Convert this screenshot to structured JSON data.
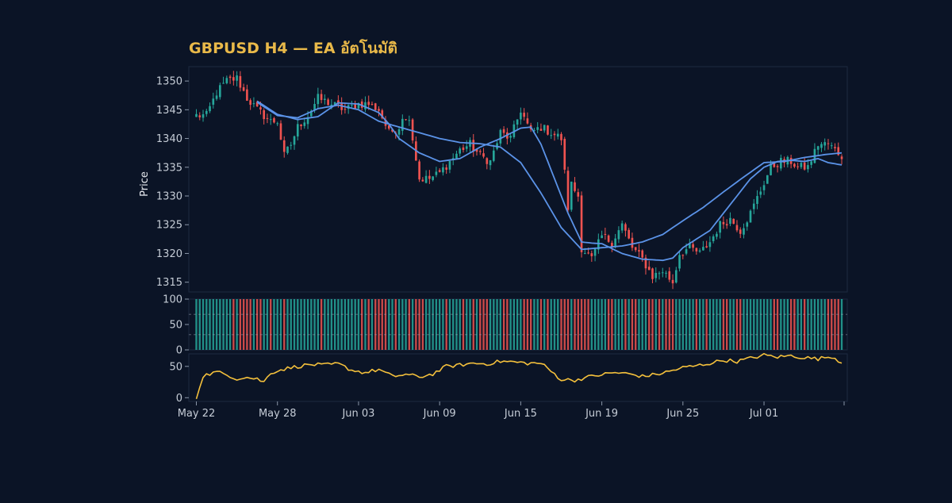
{
  "chart_data": {
    "type": "candlestick",
    "title": "GBPUSD H4 — EA อัตโนมัติ",
    "price_panel": {
      "ylabel": "Price",
      "ylim": [
        1313.3,
        1352.5
      ],
      "yticks": [
        1315,
        1320,
        1325,
        1330,
        1335,
        1340,
        1345,
        1350
      ],
      "bull_color": "#26a69a",
      "bear_color": "#ef5350",
      "ma_color": "#5b93e8"
    },
    "x_axis": {
      "tick_labels": [
        "May 22",
        "May 28",
        "Jun 03",
        "Jun 09",
        "Jun 15",
        "Jun 19",
        "Jun 25",
        "Jul 01"
      ],
      "tick_index": [
        0,
        24,
        48,
        72,
        96,
        120,
        144,
        168
      ],
      "n_bars": 192
    },
    "close_keys": [
      [
        0,
        1344
      ],
      [
        3,
        1344
      ],
      [
        6,
        1348
      ],
      [
        9,
        1350
      ],
      [
        12,
        1350.5
      ],
      [
        15,
        1347
      ],
      [
        18,
        1345
      ],
      [
        22,
        1343
      ],
      [
        24,
        1343
      ],
      [
        26,
        1337
      ],
      [
        28,
        1339
      ],
      [
        30,
        1342
      ],
      [
        33,
        1344
      ],
      [
        36,
        1347
      ],
      [
        40,
        1346
      ],
      [
        44,
        1345
      ],
      [
        48,
        1346
      ],
      [
        51,
        1346
      ],
      [
        54,
        1345
      ],
      [
        57,
        1341
      ],
      [
        60,
        1342
      ],
      [
        61,
        1344
      ],
      [
        62,
        1343
      ],
      [
        63,
        1344
      ],
      [
        64,
        1340
      ],
      [
        66,
        1333
      ],
      [
        69,
        1333
      ],
      [
        72,
        1334
      ],
      [
        75,
        1336
      ],
      [
        78,
        1338
      ],
      [
        81,
        1339
      ],
      [
        84,
        1337
      ],
      [
        87,
        1336
      ],
      [
        90,
        1341
      ],
      [
        93,
        1340
      ],
      [
        96,
        1345
      ],
      [
        99,
        1341
      ],
      [
        102,
        1342
      ],
      [
        105,
        1341
      ],
      [
        108,
        1340
      ],
      [
        110,
        1328
      ],
      [
        111,
        1332
      ],
      [
        113,
        1330
      ],
      [
        114,
        1321
      ],
      [
        117,
        1319
      ],
      [
        120,
        1323
      ],
      [
        123,
        1322
      ],
      [
        126,
        1325
      ],
      [
        129,
        1321
      ],
      [
        132,
        1319
      ],
      [
        135,
        1316
      ],
      [
        138,
        1317
      ],
      [
        141,
        1315
      ],
      [
        143,
        1320
      ],
      [
        146,
        1321
      ],
      [
        149,
        1320
      ],
      [
        152,
        1322
      ],
      [
        155,
        1325
      ],
      [
        158,
        1326
      ],
      [
        161,
        1324
      ],
      [
        164,
        1327
      ],
      [
        167,
        1331
      ],
      [
        170,
        1335
      ],
      [
        173,
        1336
      ],
      [
        176,
        1336
      ],
      [
        178,
        1335
      ],
      [
        181,
        1335
      ],
      [
        184,
        1339
      ],
      [
        187,
        1339
      ],
      [
        191,
        1337
      ]
    ],
    "ma_fast_keys": [
      [
        18,
        1346.5
      ],
      [
        24,
        1344.2
      ],
      [
        30,
        1343.3
      ],
      [
        36,
        1343.8
      ],
      [
        42,
        1346.2
      ],
      [
        48,
        1346
      ],
      [
        54,
        1344.5
      ],
      [
        57,
        1342.5
      ],
      [
        60,
        1340
      ],
      [
        66,
        1337.5
      ],
      [
        72,
        1336
      ],
      [
        78,
        1336.5
      ],
      [
        84,
        1338.5
      ],
      [
        90,
        1340
      ],
      [
        96,
        1341.8
      ],
      [
        99,
        1342
      ],
      [
        102,
        1339
      ],
      [
        106,
        1333
      ],
      [
        110,
        1327
      ],
      [
        114,
        1322
      ],
      [
        117,
        1321.8
      ],
      [
        120,
        1321.7
      ],
      [
        126,
        1320
      ],
      [
        132,
        1319
      ],
      [
        138,
        1318.8
      ],
      [
        141,
        1319.2
      ],
      [
        144,
        1321
      ],
      [
        148,
        1322.5
      ],
      [
        152,
        1324
      ],
      [
        156,
        1327
      ],
      [
        160,
        1330
      ],
      [
        164,
        1333
      ],
      [
        168,
        1335
      ],
      [
        172,
        1336
      ],
      [
        176,
        1336.2
      ],
      [
        180,
        1336
      ],
      [
        184,
        1336.5
      ],
      [
        187,
        1335.8
      ],
      [
        191,
        1335.4
      ]
    ],
    "ma_slow_keys": [
      [
        18,
        1346.3
      ],
      [
        24,
        1344
      ],
      [
        30,
        1343.6
      ],
      [
        36,
        1345.2
      ],
      [
        42,
        1345.8
      ],
      [
        48,
        1345
      ],
      [
        54,
        1343
      ],
      [
        60,
        1342
      ],
      [
        66,
        1341
      ],
      [
        72,
        1340
      ],
      [
        78,
        1339.3
      ],
      [
        84,
        1339.1
      ],
      [
        90,
        1338.5
      ],
      [
        96,
        1335.8
      ],
      [
        102,
        1330.5
      ],
      [
        108,
        1324.5
      ],
      [
        114,
        1320.7
      ],
      [
        120,
        1321
      ],
      [
        126,
        1321.3
      ],
      [
        132,
        1322
      ],
      [
        138,
        1323.3
      ],
      [
        144,
        1325.7
      ],
      [
        150,
        1328
      ],
      [
        156,
        1330.7
      ],
      [
        162,
        1333.3
      ],
      [
        168,
        1335.8
      ],
      [
        174,
        1336
      ],
      [
        180,
        1336.7
      ],
      [
        186,
        1337.2
      ],
      [
        191,
        1337.5
      ]
    ],
    "signal_panel": {
      "ylim": [
        0,
        100
      ],
      "yticks": [
        0,
        50,
        100
      ],
      "threshold_lines": [
        30,
        70
      ],
      "buy_color": "#26a69a",
      "sell_color": "#ef5350"
    },
    "oscillator_panel": {
      "ylim": [
        -6,
        70
      ],
      "yticks": [
        0,
        50
      ],
      "color": "#f5c13c",
      "keys": [
        [
          0,
          -2
        ],
        [
          2,
          35
        ],
        [
          6,
          41
        ],
        [
          10,
          35
        ],
        [
          12,
          30
        ],
        [
          14,
          33
        ],
        [
          18,
          30
        ],
        [
          20,
          25
        ],
        [
          22,
          40
        ],
        [
          26,
          46
        ],
        [
          30,
          50
        ],
        [
          34,
          53
        ],
        [
          38,
          52
        ],
        [
          42,
          54
        ],
        [
          46,
          44
        ],
        [
          50,
          40
        ],
        [
          54,
          45
        ],
        [
          58,
          34
        ],
        [
          62,
          37
        ],
        [
          66,
          33
        ],
        [
          70,
          38
        ],
        [
          74,
          50
        ],
        [
          78,
          52
        ],
        [
          82,
          55
        ],
        [
          86,
          54
        ],
        [
          90,
          58
        ],
        [
          94,
          57
        ],
        [
          98,
          55
        ],
        [
          102,
          55
        ],
        [
          108,
          29
        ],
        [
          112,
          28
        ],
        [
          116,
          33
        ],
        [
          120,
          37
        ],
        [
          124,
          40
        ],
        [
          128,
          38
        ],
        [
          132,
          34
        ],
        [
          136,
          37
        ],
        [
          140,
          42
        ],
        [
          144,
          48
        ],
        [
          148,
          51
        ],
        [
          152,
          55
        ],
        [
          156,
          60
        ],
        [
          160,
          58
        ],
        [
          164,
          63
        ],
        [
          168,
          68
        ],
        [
          172,
          65
        ],
        [
          176,
          67
        ],
        [
          180,
          64
        ],
        [
          184,
          62
        ],
        [
          188,
          66
        ],
        [
          191,
          56
        ]
      ]
    }
  }
}
